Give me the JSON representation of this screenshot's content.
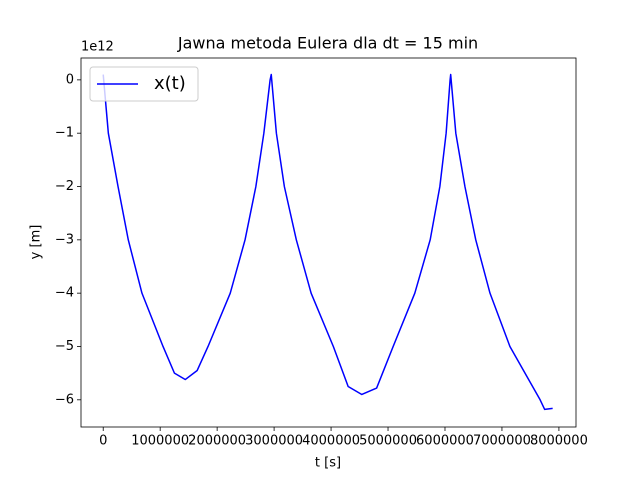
{
  "chart_data": {
    "type": "line",
    "title": "Jawna metoda Eulera dla dt = 15 min",
    "x_label": "t [s]",
    "y_label": "y [m]",
    "y_offset_text": "1e12",
    "legend_loc": "upper left",
    "x": [
      0,
      90000,
      260000,
      440000,
      680000,
      1050000,
      1250000,
      1440000,
      1650000,
      1840000,
      2230000,
      2490000,
      2680000,
      2820000,
      2930000,
      2950000,
      3040000,
      3180000,
      3390000,
      3650000,
      4040000,
      4300000,
      4540000,
      4800000,
      5090000,
      5470000,
      5740000,
      5910000,
      6020000,
      6090000,
      6100000,
      6190000,
      6350000,
      6540000,
      6790000,
      7140000,
      7670000,
      7750000,
      7890000
    ],
    "series": [
      {
        "name": "x(t)",
        "color": "#0000ff",
        "values": [
          0.1,
          -1,
          -2,
          -3,
          -4,
          -5,
          -5.5,
          -5.62,
          -5.45,
          -5,
          -4,
          -3,
          -2,
          -1,
          0,
          0.1,
          -1,
          -2,
          -3,
          -4,
          -5,
          -5.75,
          -5.9,
          -5.78,
          -5,
          -4,
          -3,
          -2,
          -1,
          0,
          0.1,
          -1,
          -2,
          -3,
          -4,
          -5,
          -6,
          -6.18,
          -6.16
        ]
      }
    ],
    "xlim": [
      -390000,
      8300000
    ],
    "ylim": [
      -6.51,
      0.41
    ],
    "xticks": [
      0,
      1000000,
      2000000,
      3000000,
      4000000,
      5000000,
      6000000,
      7000000,
      8000000
    ],
    "yticks": [
      {
        "value": -6,
        "label": "−6"
      },
      {
        "value": -5,
        "label": "−5"
      },
      {
        "value": -4,
        "label": "−4"
      },
      {
        "value": -3,
        "label": "−3"
      },
      {
        "value": -2,
        "label": "−2"
      },
      {
        "value": -1,
        "label": "−1"
      },
      0
    ]
  }
}
